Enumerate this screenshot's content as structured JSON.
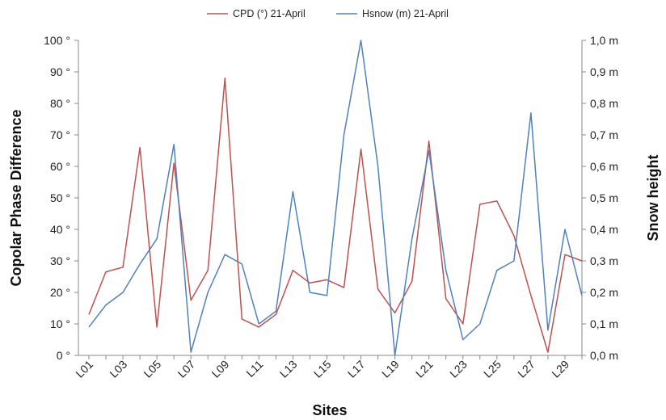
{
  "chart_data": {
    "type": "line",
    "xlabel": "Sites",
    "ylabel": "Copolar Phase Difference",
    "y2label": "Snow height",
    "ylim": [
      0,
      100
    ],
    "y2lim": [
      0,
      1.0
    ],
    "grid": false,
    "legend_position": "top-center",
    "x": [
      "L01",
      "L02",
      "L03",
      "L04",
      "L05",
      "L06",
      "L07",
      "L08",
      "L09",
      "L10",
      "L11",
      "L12",
      "L13",
      "L14",
      "L15",
      "L16",
      "L17",
      "L18",
      "L19",
      "L20",
      "L21",
      "L22",
      "L23",
      "L24",
      "L25",
      "L26",
      "L27",
      "L28",
      "L29",
      "L30"
    ],
    "x_tick_labels": [
      "L01",
      "L03",
      "L05",
      "L07",
      "L09",
      "L11",
      "L13",
      "L15",
      "L17",
      "L19",
      "L21",
      "L23",
      "L25",
      "L27",
      "L29"
    ],
    "y_tick_labels": [
      "0 °",
      "10 °",
      "20 °",
      "30 °",
      "40 °",
      "50 °",
      "60 °",
      "70 °",
      "80 °",
      "90 °",
      "100 °"
    ],
    "y2_tick_labels": [
      "0,0 m",
      "0,1 m",
      "0,2 m",
      "0,3 m",
      "0,4 m",
      "0,5 m",
      "0,6 m",
      "0,7 m",
      "0,8 m",
      "0,9 m",
      "1,0 m"
    ],
    "series": [
      {
        "name": "CPD (°) 21-April",
        "axis": "left",
        "color": "#c0504d",
        "values": [
          13,
          26.5,
          28,
          66,
          9,
          61,
          17.5,
          27,
          88,
          11.5,
          9,
          13,
          27,
          23,
          24,
          21.5,
          65.5,
          21,
          13.5,
          23.5,
          68,
          18,
          10,
          48,
          49,
          38,
          19,
          1,
          32,
          30
        ]
      },
      {
        "name": "Hsnow (m) 21-April",
        "axis": "right",
        "color": "#4f81bd",
        "values": [
          0.09,
          0.16,
          0.2,
          0.29,
          0.37,
          0.67,
          0.01,
          0.2,
          0.32,
          0.29,
          0.1,
          0.14,
          0.52,
          0.2,
          0.19,
          0.7,
          1.0,
          0.6,
          0.0,
          0.37,
          0.65,
          0.27,
          0.05,
          0.1,
          0.27,
          0.3,
          0.77,
          0.08,
          0.4,
          0.19
        ]
      }
    ]
  }
}
